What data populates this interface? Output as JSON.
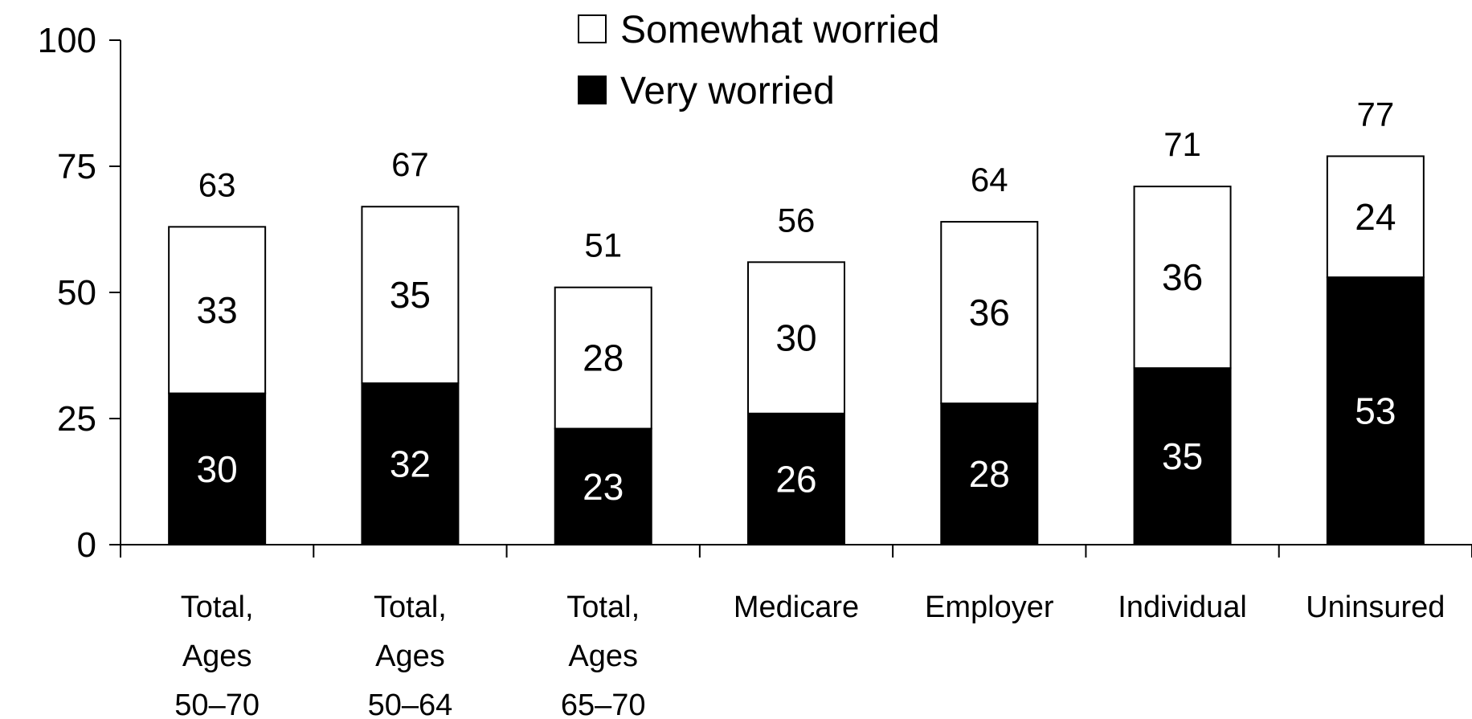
{
  "chart_data": {
    "type": "bar",
    "stacked": true,
    "title": "",
    "xlabel": "",
    "ylabel": "",
    "ylim": [
      0,
      100
    ],
    "yticks": [
      "0",
      "25",
      "50",
      "75",
      "100"
    ],
    "grid": false,
    "legend_position": "top-center",
    "categories": [
      [
        "Total,",
        "Ages",
        "50–70"
      ],
      [
        "Total,",
        "Ages",
        "50–64"
      ],
      [
        "Total,",
        "Ages",
        "65–70"
      ],
      [
        "Medicare"
      ],
      [
        "Employer"
      ],
      [
        "Individual"
      ],
      [
        "Uninsured"
      ]
    ],
    "series": [
      {
        "name": "Very worried",
        "color": "#000000",
        "label_color": "#ffffff",
        "values": [
          30,
          32,
          23,
          26,
          28,
          35,
          53
        ]
      },
      {
        "name": "Somewhat worried",
        "color": "#ffffff",
        "label_color": "#000000",
        "values": [
          33,
          35,
          28,
          30,
          36,
          36,
          24
        ]
      }
    ],
    "totals": [
      63,
      67,
      51,
      56,
      64,
      71,
      77
    ],
    "legend_order": [
      "Somewhat worried",
      "Very worried"
    ]
  }
}
